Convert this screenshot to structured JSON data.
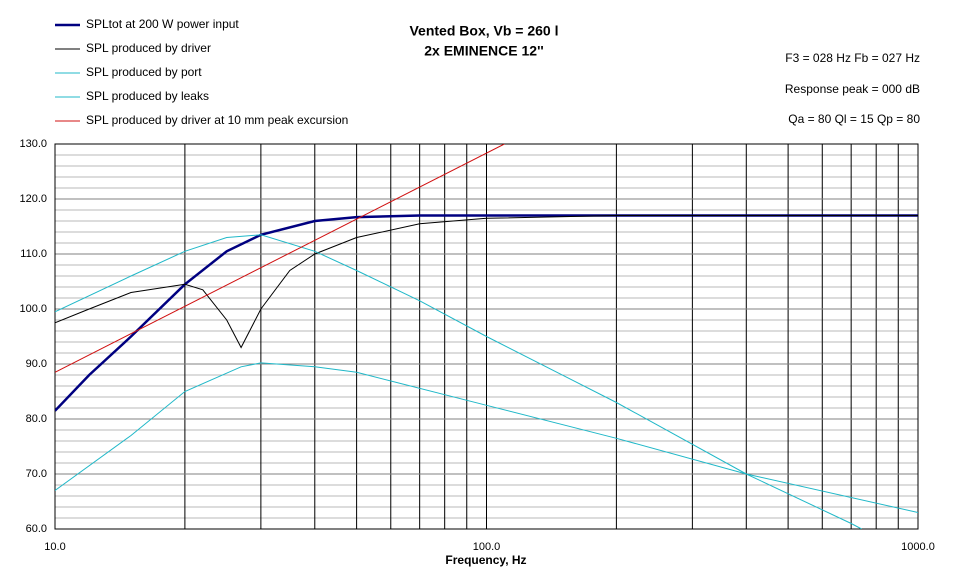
{
  "chart_data": {
    "type": "line",
    "title": "Vented Box, Vb = 260 l",
    "subtitle": "2x EMINENCE 12''",
    "annotations": [
      "F3 = 028 Hz  Fb = 027 Hz",
      "Response peak = 000 dB",
      "Qa = 80  Ql = 15  Qp = 80"
    ],
    "x_label": "Frequency, Hz",
    "log_x": true,
    "xlim": [
      10,
      1000
    ],
    "xticks": [
      {
        "value": 10,
        "label": "10.0"
      },
      {
        "value": 100,
        "label": "100.0"
      },
      {
        "value": 1000,
        "label": "1000.0"
      }
    ],
    "ylim": [
      60,
      130
    ],
    "yticks": [
      {
        "value": 60,
        "label": "60.0"
      },
      {
        "value": 70,
        "label": "70.0"
      },
      {
        "value": 80,
        "label": "80.0"
      },
      {
        "value": 90,
        "label": "90.0"
      },
      {
        "value": 100,
        "label": "100.0"
      },
      {
        "value": 110,
        "label": "110.0"
      },
      {
        "value": 120,
        "label": "120.0"
      },
      {
        "value": 130,
        "label": "130.0"
      }
    ],
    "grid": true,
    "series": [
      {
        "name": "SPLtot at 200 W power input",
        "color": "#000080",
        "width": 2.5,
        "x": [
          10,
          12,
          15,
          20,
          25,
          30,
          40,
          50,
          70,
          100,
          200,
          1000
        ],
        "values": [
          81.5,
          88,
          95,
          104.5,
          110.5,
          113.5,
          116,
          116.7,
          117,
          117,
          117,
          117
        ]
      },
      {
        "name": "SPL produced by driver",
        "color": "#000000",
        "width": 1,
        "x": [
          10,
          12,
          15,
          20,
          22,
          25,
          27,
          30,
          35,
          40,
          50,
          70,
          100,
          200,
          1000
        ],
        "values": [
          97.5,
          100,
          103,
          104.5,
          103.5,
          98,
          93,
          100,
          107,
          110,
          113,
          115.5,
          116.5,
          117,
          117
        ]
      },
      {
        "name": "SPL produced by port",
        "color": "#20b8c8",
        "width": 1,
        "x": [
          10,
          15,
          20,
          25,
          30,
          40,
          50,
          70,
          100,
          200,
          400,
          700,
          740
        ],
        "values": [
          99.5,
          106,
          110.5,
          113,
          113.5,
          110.5,
          107,
          101.5,
          95,
          83,
          70,
          61,
          60
        ]
      },
      {
        "name": "SPL produced by leaks",
        "color": "#20b8c8",
        "width": 1,
        "x": [
          10,
          15,
          20,
          27,
          30,
          40,
          50,
          100,
          200,
          400,
          1000
        ],
        "values": [
          67,
          77,
          85,
          89.5,
          90.2,
          89.5,
          88.5,
          82.5,
          76.5,
          70,
          63
        ]
      },
      {
        "name": "SPL produced by driver at 10 mm peak excursion",
        "color": "#d01010",
        "width": 1,
        "x": [
          10,
          110
        ],
        "values": [
          88.5,
          130
        ]
      }
    ]
  }
}
